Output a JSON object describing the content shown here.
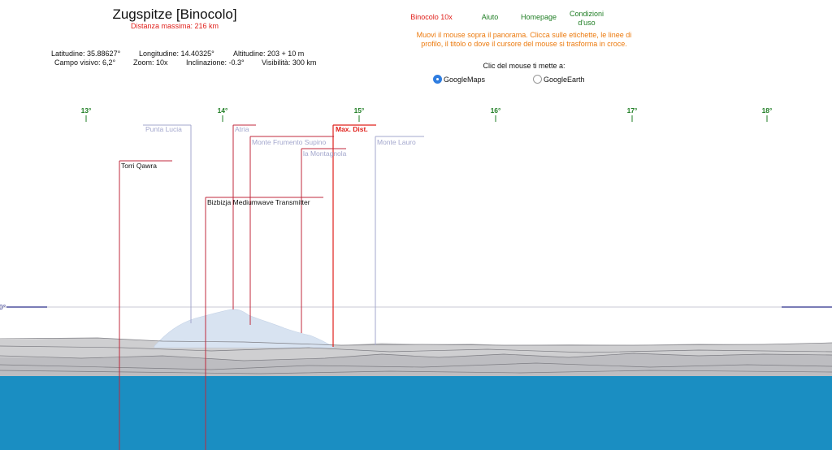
{
  "header": {
    "title": "Zugspitze [Binocolo]",
    "max_distance": "Distanza massima: 216 km",
    "latitude": "Latitudine: 35.88627°",
    "longitude": "Longitudine: 14.40325°",
    "altitude": "Altitudine: 203 + 10 m",
    "field_of_view": "Campo visivo: 6,2°",
    "zoom": "Zoom: 10x",
    "tilt": "Inclinazione: -0.3°",
    "visibility": "Visibilità: 300 km"
  },
  "menu": {
    "binoculars": "Binocolo 10x",
    "help": "Aiuto",
    "homepage": "Homepage",
    "terms": "Condizioni\nd'uso"
  },
  "instructions": "Muovi il mouse sopra il panorama. Clicca sulle etichette, le linee di profilo, il titolo o dove il cursore del mouse si trasforma in croce.",
  "click_prompt": "Clic del mouse ti mette a:",
  "radio_options": [
    {
      "label": "GoogleMaps",
      "selected": true
    },
    {
      "label": "GoogleEarth",
      "selected": false
    }
  ],
  "panorama": {
    "longitude_ticks": [
      "13°",
      "14°",
      "15°",
      "16°",
      "17°",
      "18°"
    ],
    "horizon_label": "0°",
    "labels": {
      "punta_lucia": "Punta Lucia",
      "atria": "Atria",
      "max_dist": "Max. Dist.",
      "monte_frumento_supino": "Monte Frumento Supino",
      "monte_lauro": "Monte Lauro",
      "la_montagnola": "la Montagnola",
      "torri_qawra": "Torri Qawra",
      "bizbizja": "Bizbizja Mediumwave Transmitter"
    },
    "colors": {
      "sea": "#1a8ec2",
      "land": "#c9c9cb",
      "etna": "#d8e3f1",
      "near_marker": "#c0283c",
      "far_marker": "#a3a7cd",
      "max_dist": "#e0201b",
      "degree": "#1e7d23",
      "instructions": "#ec7a0e"
    }
  }
}
